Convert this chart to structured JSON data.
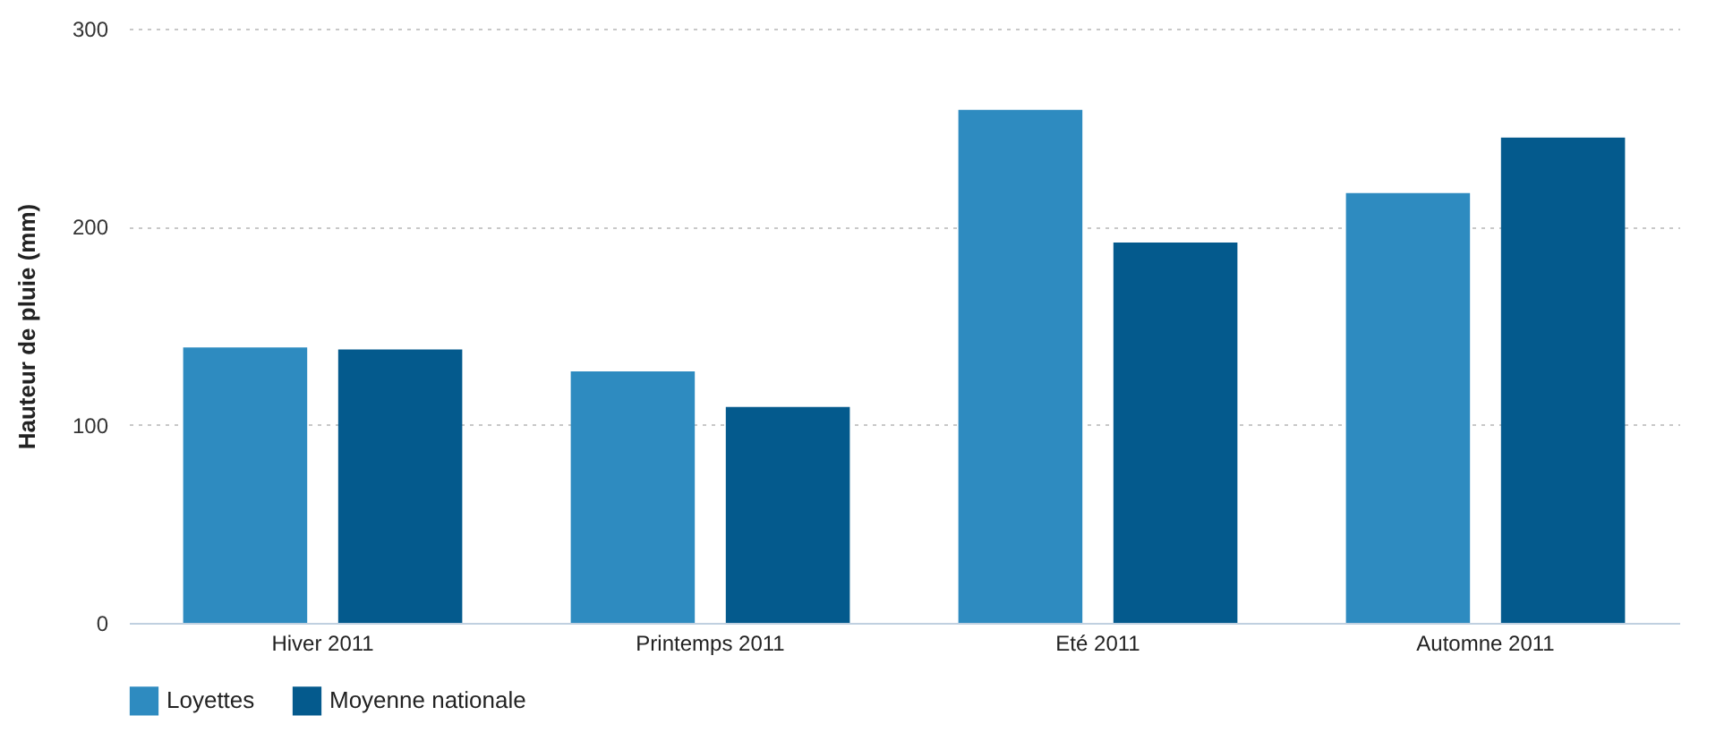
{
  "chart_data": {
    "type": "bar",
    "ylabel": "Hauteur de pluie (mm)",
    "categories": [
      "Hiver 2011",
      "Printemps 2011",
      "Eté 2011",
      "Automne 2011"
    ],
    "series": [
      {
        "name": "Loyettes",
        "color": "#2e8bc0",
        "values": [
          139,
          127,
          259,
          217
        ]
      },
      {
        "name": "Moyenne nationale",
        "color": "#045a8d",
        "values": [
          138,
          109,
          192,
          245
        ]
      }
    ],
    "ylim": [
      0,
      300
    ],
    "yticks": [
      0,
      100,
      200,
      300
    ],
    "grid": "y",
    "legend": "bottom"
  }
}
